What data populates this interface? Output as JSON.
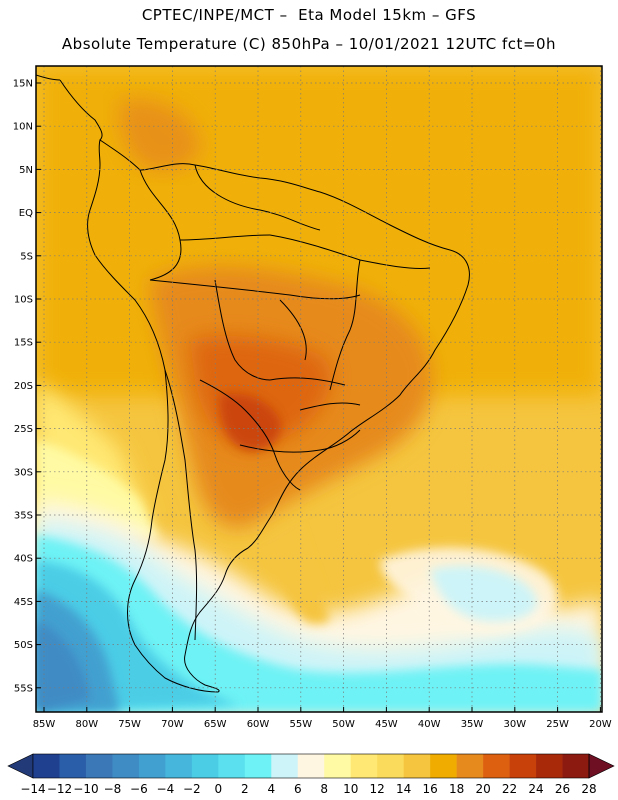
{
  "header": {
    "line1": "CPTEC/INPE/MCT –  Eta Model 15km – GFS",
    "line2": "Absolute Temperature (C) 850hPa – 10/01/2021 12UTC fct=0h"
  },
  "map": {
    "lat_labels": [
      "15N",
      "10N",
      "5N",
      "EQ",
      "5S",
      "10S",
      "15S",
      "20S",
      "25S",
      "30S",
      "35S",
      "40S",
      "45S",
      "50S",
      "55S"
    ],
    "lon_labels": [
      "85W",
      "80W",
      "75W",
      "70W",
      "65W",
      "60W",
      "55W",
      "50W",
      "45W",
      "40W",
      "35W",
      "30W",
      "25W",
      "20W"
    ],
    "gridlines": "dotted"
  },
  "colorbar": {
    "labels": [
      "-14",
      "-12",
      "-10",
      "-8",
      "-6",
      "-4",
      "-2",
      "0",
      "2",
      "4",
      "6",
      "8",
      "10",
      "12",
      "14",
      "16",
      "18",
      "20",
      "22",
      "24",
      "26",
      "28"
    ],
    "colors": [
      "#1f3f8f",
      "#2b5ea8",
      "#3a78b8",
      "#3f8bc4",
      "#42a0d0",
      "#46b6dc",
      "#4ccde6",
      "#5ae0ee",
      "#6ef2f5",
      "#cdf4f8",
      "#fff6e2",
      "#fffaa3",
      "#ffe873",
      "#fadb5b",
      "#f5c53f",
      "#f0ad00",
      "#e68a1e",
      "#dd6010",
      "#c8400a",
      "#a8280a",
      "#8c1a10"
    ],
    "under_color": "#223a78",
    "over_color": "#6e0f24"
  }
}
